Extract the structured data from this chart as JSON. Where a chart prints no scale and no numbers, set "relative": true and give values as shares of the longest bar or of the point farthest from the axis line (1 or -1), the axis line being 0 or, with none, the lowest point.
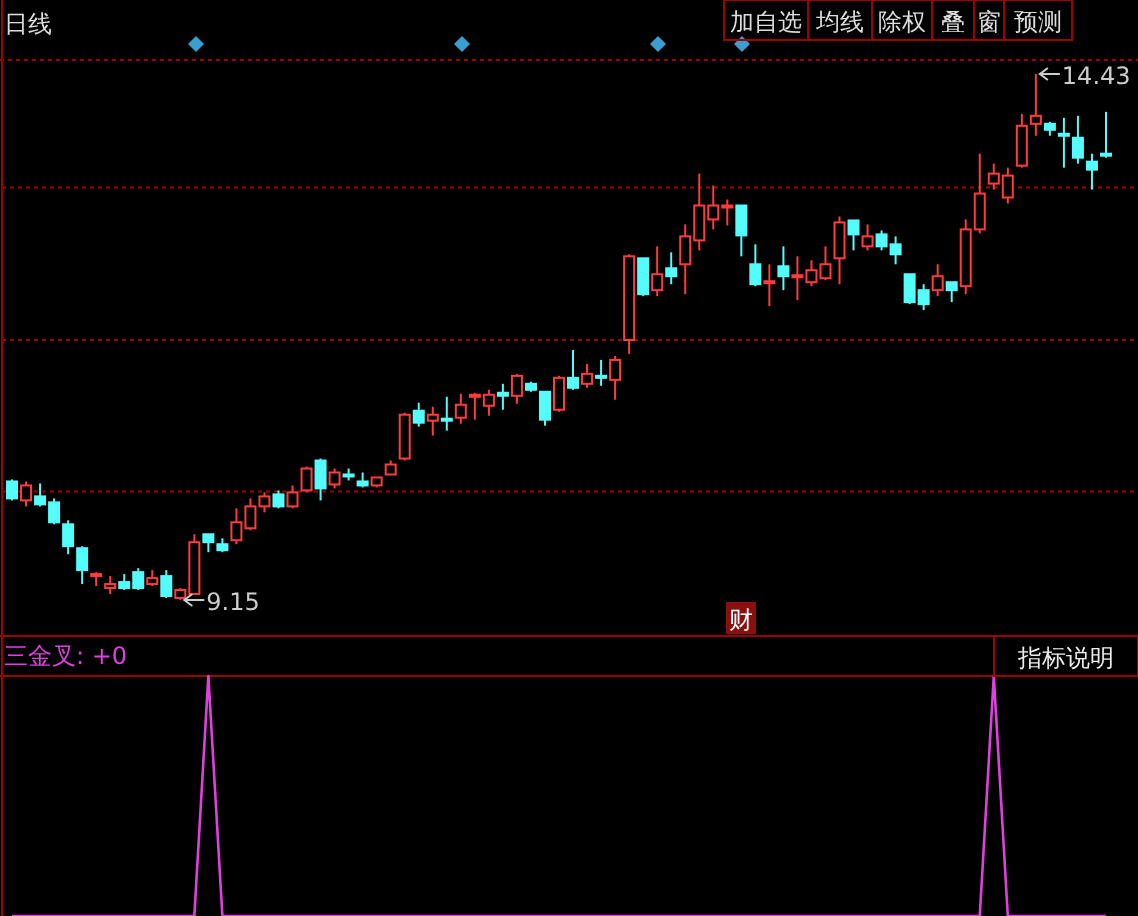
{
  "chart_data": [
    {
      "type": "candlestick",
      "categories": [
        null,
        null,
        null,
        null,
        null,
        null,
        null,
        null,
        null,
        null,
        null,
        null,
        null,
        null,
        null,
        null,
        null,
        null,
        null,
        null,
        null,
        null,
        null,
        null,
        null,
        null,
        null,
        null,
        null,
        null,
        null,
        null,
        null,
        null,
        null,
        null,
        null,
        null,
        null,
        null,
        null,
        null,
        null,
        null,
        null,
        null,
        null,
        null,
        null,
        null,
        null,
        null,
        null,
        null,
        null,
        null,
        null,
        null,
        null,
        null,
        null,
        null,
        null,
        null,
        null,
        null,
        null,
        null,
        null,
        null,
        null,
        null,
        null,
        null,
        null,
        null,
        null,
        null,
        null
      ],
      "ohlc": [
        [
          10.34,
          10.36,
          10.15,
          10.17
        ],
        [
          10.15,
          10.34,
          10.09,
          10.3
        ],
        [
          10.19,
          10.32,
          10.09,
          10.11
        ],
        [
          10.13,
          10.17,
          9.91,
          9.93
        ],
        [
          9.91,
          9.95,
          9.61,
          9.69
        ],
        [
          9.67,
          9.69,
          9.31,
          9.45
        ],
        [
          9.39,
          9.43,
          9.29,
          9.41
        ],
        [
          9.27,
          9.39,
          9.21,
          9.31
        ],
        [
          9.33,
          9.41,
          9.25,
          9.27
        ],
        [
          9.43,
          9.47,
          9.25,
          9.27
        ],
        [
          9.31,
          9.45,
          9.29,
          9.37
        ],
        [
          9.39,
          9.45,
          9.17,
          9.19
        ],
        [
          9.17,
          9.27,
          9.15,
          9.25
        ],
        [
          9.21,
          9.81,
          9.21,
          9.73
        ],
        [
          9.81,
          9.81,
          9.63,
          9.73
        ],
        [
          9.71,
          9.77,
          9.63,
          9.65
        ],
        [
          9.75,
          10.07,
          9.71,
          9.93
        ],
        [
          9.87,
          10.17,
          9.85,
          10.09
        ],
        [
          10.09,
          10.23,
          10.03,
          10.19
        ],
        [
          10.21,
          10.25,
          10.07,
          10.09
        ],
        [
          10.09,
          10.3,
          10.07,
          10.23
        ],
        [
          10.25,
          10.49,
          10.23,
          10.47
        ],
        [
          10.55,
          10.57,
          10.15,
          10.27
        ],
        [
          10.31,
          10.47,
          10.27,
          10.43
        ],
        [
          10.41,
          10.47,
          10.35,
          10.39
        ],
        [
          10.34,
          10.43,
          10.28,
          10.3
        ],
        [
          10.3,
          10.38,
          10.28,
          10.38
        ],
        [
          10.41,
          10.55,
          10.41,
          10.51
        ],
        [
          10.57,
          11.03,
          10.55,
          11.01
        ],
        [
          11.05,
          11.13,
          10.89,
          10.93
        ],
        [
          10.95,
          11.09,
          10.8,
          11.01
        ],
        [
          10.97,
          11.19,
          10.85,
          10.95
        ],
        [
          10.98,
          11.22,
          10.92,
          11.11
        ],
        [
          11.19,
          11.23,
          10.96,
          11.21
        ],
        [
          11.1,
          11.26,
          11.0,
          11.21
        ],
        [
          11.23,
          11.32,
          11.06,
          11.2
        ],
        [
          11.2,
          11.42,
          11.12,
          11.4
        ],
        [
          11.32,
          11.34,
          11.24,
          11.26
        ],
        [
          11.24,
          11.24,
          10.9,
          10.96
        ],
        [
          11.06,
          11.4,
          11.04,
          11.38
        ],
        [
          11.38,
          11.66,
          11.26,
          11.28
        ],
        [
          11.32,
          11.52,
          11.28,
          11.42
        ],
        [
          11.4,
          11.56,
          11.3,
          11.38
        ],
        [
          11.36,
          11.6,
          11.16,
          11.56
        ],
        [
          11.76,
          12.62,
          11.62,
          12.6
        ],
        [
          12.58,
          12.58,
          12.2,
          12.22
        ],
        [
          12.26,
          12.7,
          12.2,
          12.42
        ],
        [
          12.48,
          12.64,
          12.32,
          12.4
        ],
        [
          12.52,
          12.92,
          12.22,
          12.8
        ],
        [
          12.76,
          13.43,
          12.66,
          13.11
        ],
        [
          12.97,
          13.31,
          12.87,
          13.11
        ],
        [
          13.09,
          13.17,
          12.91,
          13.11
        ],
        [
          13.11,
          13.11,
          12.6,
          12.81
        ],
        [
          12.52,
          12.72,
          12.3,
          12.32
        ],
        [
          12.33,
          12.52,
          12.1,
          12.35
        ],
        [
          12.5,
          12.7,
          12.26,
          12.4
        ],
        [
          12.39,
          12.6,
          12.16,
          12.41
        ],
        [
          12.34,
          12.56,
          12.3,
          12.46
        ],
        [
          12.38,
          12.7,
          12.36,
          12.52
        ],
        [
          12.58,
          13.0,
          12.32,
          12.94
        ],
        [
          12.96,
          12.96,
          12.66,
          12.82
        ],
        [
          12.7,
          12.92,
          12.66,
          12.8
        ],
        [
          12.82,
          12.86,
          12.66,
          12.7
        ],
        [
          12.72,
          12.8,
          12.52,
          12.62
        ],
        [
          12.42,
          12.42,
          12.12,
          12.14
        ],
        [
          12.26,
          12.32,
          12.06,
          12.12
        ],
        [
          12.26,
          12.52,
          12.2,
          12.4
        ],
        [
          12.34,
          12.34,
          12.14,
          12.26
        ],
        [
          12.3,
          12.97,
          12.22,
          12.87
        ],
        [
          12.87,
          13.63,
          12.83,
          13.23
        ],
        [
          13.33,
          13.53,
          13.27,
          13.43
        ],
        [
          13.19,
          13.49,
          13.13,
          13.41
        ],
        [
          13.51,
          14.03,
          13.49,
          13.91
        ],
        [
          13.93,
          14.43,
          13.81,
          14.01
        ],
        [
          13.93,
          13.95,
          13.81,
          13.87
        ],
        [
          13.83,
          13.99,
          13.49,
          13.81
        ],
        [
          13.79,
          14.01,
          13.53,
          13.59
        ],
        [
          13.55,
          13.63,
          13.27,
          13.47
        ],
        [
          13.63,
          14.05,
          13.59,
          13.61
        ]
      ],
      "colors": [
        "#54fcfc",
        "#ff3c3c",
        "#54fcfc",
        "#54fcfc",
        "#54fcfc",
        "#54fcfc",
        "#ff3c3c",
        "#ff3c3c",
        "#54fcfc",
        "#54fcfc",
        "#ff3c3c",
        "#54fcfc",
        "#ff3c3c",
        "#ff3c3c",
        "#54fcfc",
        "#54fcfc",
        "#ff3c3c",
        "#ff3c3c",
        "#ff3c3c",
        "#54fcfc",
        "#ff3c3c",
        "#ff3c3c",
        "#54fcfc",
        "#ff3c3c",
        "#54fcfc",
        "#54fcfc",
        "#ff3c3c",
        "#ff3c3c",
        "#ff3c3c",
        "#54fcfc",
        "#ff3c3c",
        "#54fcfc",
        "#ff3c3c",
        "#ff3c3c",
        "#ff3c3c",
        "#54fcfc",
        "#ff3c3c",
        "#54fcfc",
        "#54fcfc",
        "#ff3c3c",
        "#54fcfc",
        "#ff3c3c",
        "#54fcfc",
        "#ff3c3c",
        "#ff3c3c",
        "#54fcfc",
        "#ff3c3c",
        "#54fcfc",
        "#ff3c3c",
        "#ff3c3c",
        "#ff3c3c",
        "#ff3c3c",
        "#54fcfc",
        "#54fcfc",
        "#ff3c3c",
        "#54fcfc",
        "#ff3c3c",
        "#ff3c3c",
        "#ff3c3c",
        "#ff3c3c",
        "#54fcfc",
        "#ff3c3c",
        "#54fcfc",
        "#54fcfc",
        "#54fcfc",
        "#54fcfc",
        "#ff3c3c",
        "#54fcfc",
        "#ff3c3c",
        "#ff3c3c",
        "#ff3c3c",
        "#ff3c3c",
        "#ff3c3c",
        "#ff3c3c",
        "#54fcfc",
        "#54fcfc",
        "#54fcfc",
        "#54fcfc",
        "#54fcfc"
      ],
      "grid": "y",
      "yticks": [
        {
          "value": 10.24,
          "label": null
        },
        {
          "value": 11.76,
          "label": null
        },
        {
          "value": 13.29,
          "label": null
        }
      ],
      "annotations": [
        "日线",
        "加自选",
        "均线",
        "除权",
        "叠",
        "窗",
        "预测",
        "14.43",
        "9.15",
        "财"
      ]
    },
    {
      "type": "line",
      "relative": true,
      "title": "三金叉: +0",
      "categories": [
        null,
        null,
        null,
        null,
        null,
        null,
        null,
        null,
        null,
        null,
        null,
        null,
        null,
        null,
        null,
        null,
        null,
        null,
        null,
        null,
        null,
        null,
        null,
        null,
        null,
        null,
        null,
        null,
        null,
        null,
        null,
        null,
        null,
        null,
        null,
        null,
        null,
        null,
        null,
        null,
        null,
        null,
        null,
        null,
        null,
        null,
        null,
        null,
        null,
        null,
        null,
        null,
        null,
        null,
        null,
        null,
        null,
        null,
        null,
        null,
        null,
        null,
        null,
        null,
        null,
        null,
        null,
        null,
        null,
        null,
        null,
        null,
        null,
        null,
        null,
        null,
        null,
        null,
        null
      ],
      "series": [
        {
          "color": "#e040e0",
          "values": [
            0,
            0,
            0,
            0,
            0,
            0,
            0,
            0,
            0,
            0,
            0,
            0,
            0,
            0,
            1,
            0,
            0,
            0,
            0,
            0,
            0,
            0,
            0,
            0,
            0,
            0,
            0,
            0,
            0,
            0,
            0,
            0,
            0,
            0,
            0,
            0,
            0,
            0,
            0,
            0,
            0,
            0,
            0,
            0,
            0,
            0,
            0,
            0,
            0,
            0,
            0,
            0,
            0,
            0,
            0,
            0,
            0,
            0,
            0,
            0,
            0,
            0,
            0,
            0,
            0,
            0,
            0,
            0,
            0,
            0,
            1,
            0,
            0,
            0,
            0,
            0,
            0,
            0,
            0
          ]
        }
      ],
      "annotations": [
        "指标说明"
      ]
    }
  ]
}
